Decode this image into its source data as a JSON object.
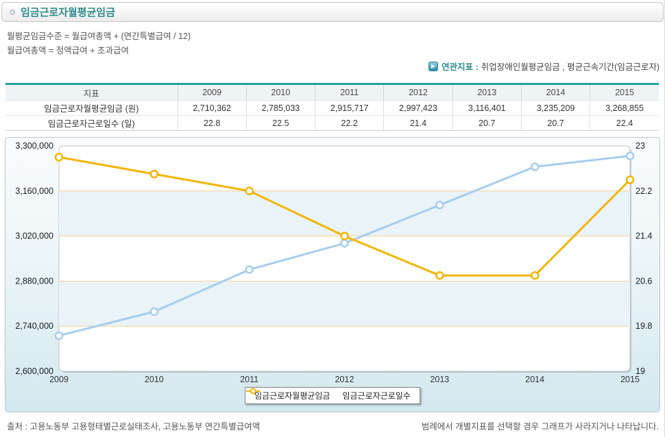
{
  "page": {
    "title": "임금근로자월평균임금",
    "formulas": [
      "월평균임금수준 = 월급여총액 + (연간특별급여 / 12)",
      "월급여총액 = 정액급여 + 초과급여"
    ],
    "related": {
      "label": "연관지표 :",
      "value": "취업장애인월평균임금 , 평균근속기간(임금근로자)"
    },
    "source": "출처 : 고용노동부 고용형태별근로실태조사, 고용노동부 연간특별급여액",
    "legend_note": "범례에서 개별지표를 선택할 경우 그래프가 사라지거나 나타납니다."
  },
  "icons": {
    "related_play": "▶",
    "title_bullet": "circle-outline"
  },
  "colors": {
    "accent_teal": "#2e8c8c",
    "table_top_border": "#21a29b",
    "series_blue": "#a5cdee",
    "series_yellow": "#f5b400",
    "gridline_orange": "#f8d193",
    "band_blue": "#e9f3f8"
  },
  "table": {
    "header": [
      "지표",
      "2009",
      "2010",
      "2011",
      "2012",
      "2013",
      "2014",
      "2015"
    ],
    "rows": [
      {
        "label": "임금근로자월평균임금 (원)",
        "values": [
          "2,710,362",
          "2,785,033",
          "2,915,717",
          "2,997,423",
          "3,116,401",
          "3,235,209",
          "3,268,855"
        ]
      },
      {
        "label": "임금근로자근로일수 (일)",
        "values": [
          "22.8",
          "22.5",
          "22.2",
          "21.4",
          "20.7",
          "20.7",
          "22.4"
        ]
      }
    ]
  },
  "chart_data": {
    "type": "line",
    "title": "",
    "categories": [
      "2009",
      "2010",
      "2011",
      "2012",
      "2013",
      "2014",
      "2015"
    ],
    "series": [
      {
        "name": "임금근로자월평균임금",
        "axis": "left",
        "color": "#a5cdee",
        "values": [
          2710362,
          2785033,
          2915717,
          2997423,
          3116401,
          3235209,
          3268855
        ]
      },
      {
        "name": "임금근로자근로일수",
        "axis": "right",
        "color": "#f5b400",
        "values": [
          22.8,
          22.5,
          22.2,
          21.4,
          20.7,
          20.7,
          22.4
        ]
      }
    ],
    "left_axis": {
      "min": 2600000,
      "max": 3300000,
      "step": 140000,
      "tick_labels": [
        "3,300,000",
        "3,160,000",
        "3,020,000",
        "2,880,000",
        "2,740,000",
        "2,600,000"
      ]
    },
    "right_axis": {
      "min": 19,
      "max": 23,
      "step": 0.8,
      "tick_labels": [
        "23",
        "22.2",
        "21.4",
        "20.6",
        "19.8",
        "19"
      ]
    },
    "grid": true,
    "legend_position": "bottom",
    "gridline_color": "#f8d193",
    "band_color": "#e9f3f8"
  }
}
